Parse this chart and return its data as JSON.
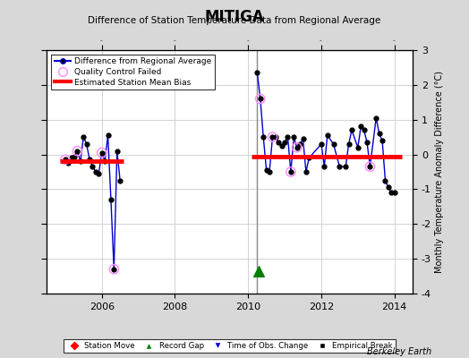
{
  "title": "MITIGA",
  "subtitle": "Difference of Station Temperature Data from Regional Average",
  "ylabel": "Monthly Temperature Anomaly Difference (°C)",
  "credit": "Berkeley Earth",
  "xlim": [
    2004.5,
    2014.5
  ],
  "ylim": [
    -4,
    3
  ],
  "yticks": [
    -4,
    -3,
    -2,
    -1,
    0,
    1,
    2,
    3
  ],
  "xticks": [
    2006,
    2008,
    2010,
    2012,
    2014
  ],
  "bg_color": "#d8d8d8",
  "plot_bg_color": "#ffffff",
  "main_line_color": "#0000cc",
  "main_marker_color": "#000000",
  "qc_color": "#ff88ff",
  "bias_color": "#ff0000",
  "vline_color": "#888888",
  "segment1": {
    "x": [
      2005.0,
      2005.083,
      2005.167,
      2005.25,
      2005.333,
      2005.417,
      2005.5,
      2005.583,
      2005.667,
      2005.75,
      2005.833,
      2005.917,
      2006.0,
      2006.083,
      2006.167,
      2006.25,
      2006.333,
      2006.417,
      2006.5
    ],
    "y": [
      -0.15,
      -0.25,
      -0.1,
      -0.05,
      0.1,
      -0.2,
      0.5,
      0.3,
      -0.15,
      -0.35,
      -0.5,
      -0.55,
      0.05,
      -0.2,
      0.55,
      -1.3,
      -3.3,
      0.1,
      -0.75
    ],
    "qc_indices": [
      0,
      4,
      12,
      16
    ],
    "bias_y": -0.2,
    "bias_x_start": 2004.85,
    "bias_x_end": 2006.6
  },
  "segment2": {
    "x": [
      2010.25,
      2010.333,
      2010.417,
      2010.5,
      2010.583,
      2010.667,
      2010.75,
      2010.833,
      2010.917,
      2011.0,
      2011.083,
      2011.167,
      2011.25,
      2011.333,
      2011.417,
      2011.5,
      2011.583,
      2011.667,
      2012.0,
      2012.083,
      2012.167,
      2012.333,
      2012.5,
      2012.667,
      2012.75,
      2012.833,
      2013.0,
      2013.083,
      2013.167,
      2013.25,
      2013.333,
      2013.5,
      2013.583,
      2013.667,
      2013.75,
      2013.833,
      2013.917,
      2014.0
    ],
    "y": [
      2.35,
      1.6,
      0.5,
      -0.45,
      -0.5,
      0.5,
      0.5,
      0.35,
      0.25,
      0.35,
      0.5,
      -0.5,
      0.5,
      0.2,
      0.3,
      0.45,
      -0.5,
      -0.1,
      0.3,
      -0.35,
      0.55,
      0.3,
      -0.35,
      -0.35,
      0.3,
      0.7,
      0.2,
      0.8,
      0.7,
      0.35,
      -0.35,
      1.05,
      0.6,
      0.4,
      -0.75,
      -0.95,
      -1.1,
      -1.1
    ],
    "qc_indices": [
      1,
      5,
      11,
      13,
      30
    ],
    "bias_y": -0.05,
    "bias_x_start": 2010.1,
    "bias_x_end": 2014.2
  },
  "vline_x": 2010.25,
  "record_gap_x": 2010.3,
  "record_gap_y": -3.35,
  "qc_circle_size": 55,
  "main_marker_size": 3.5
}
